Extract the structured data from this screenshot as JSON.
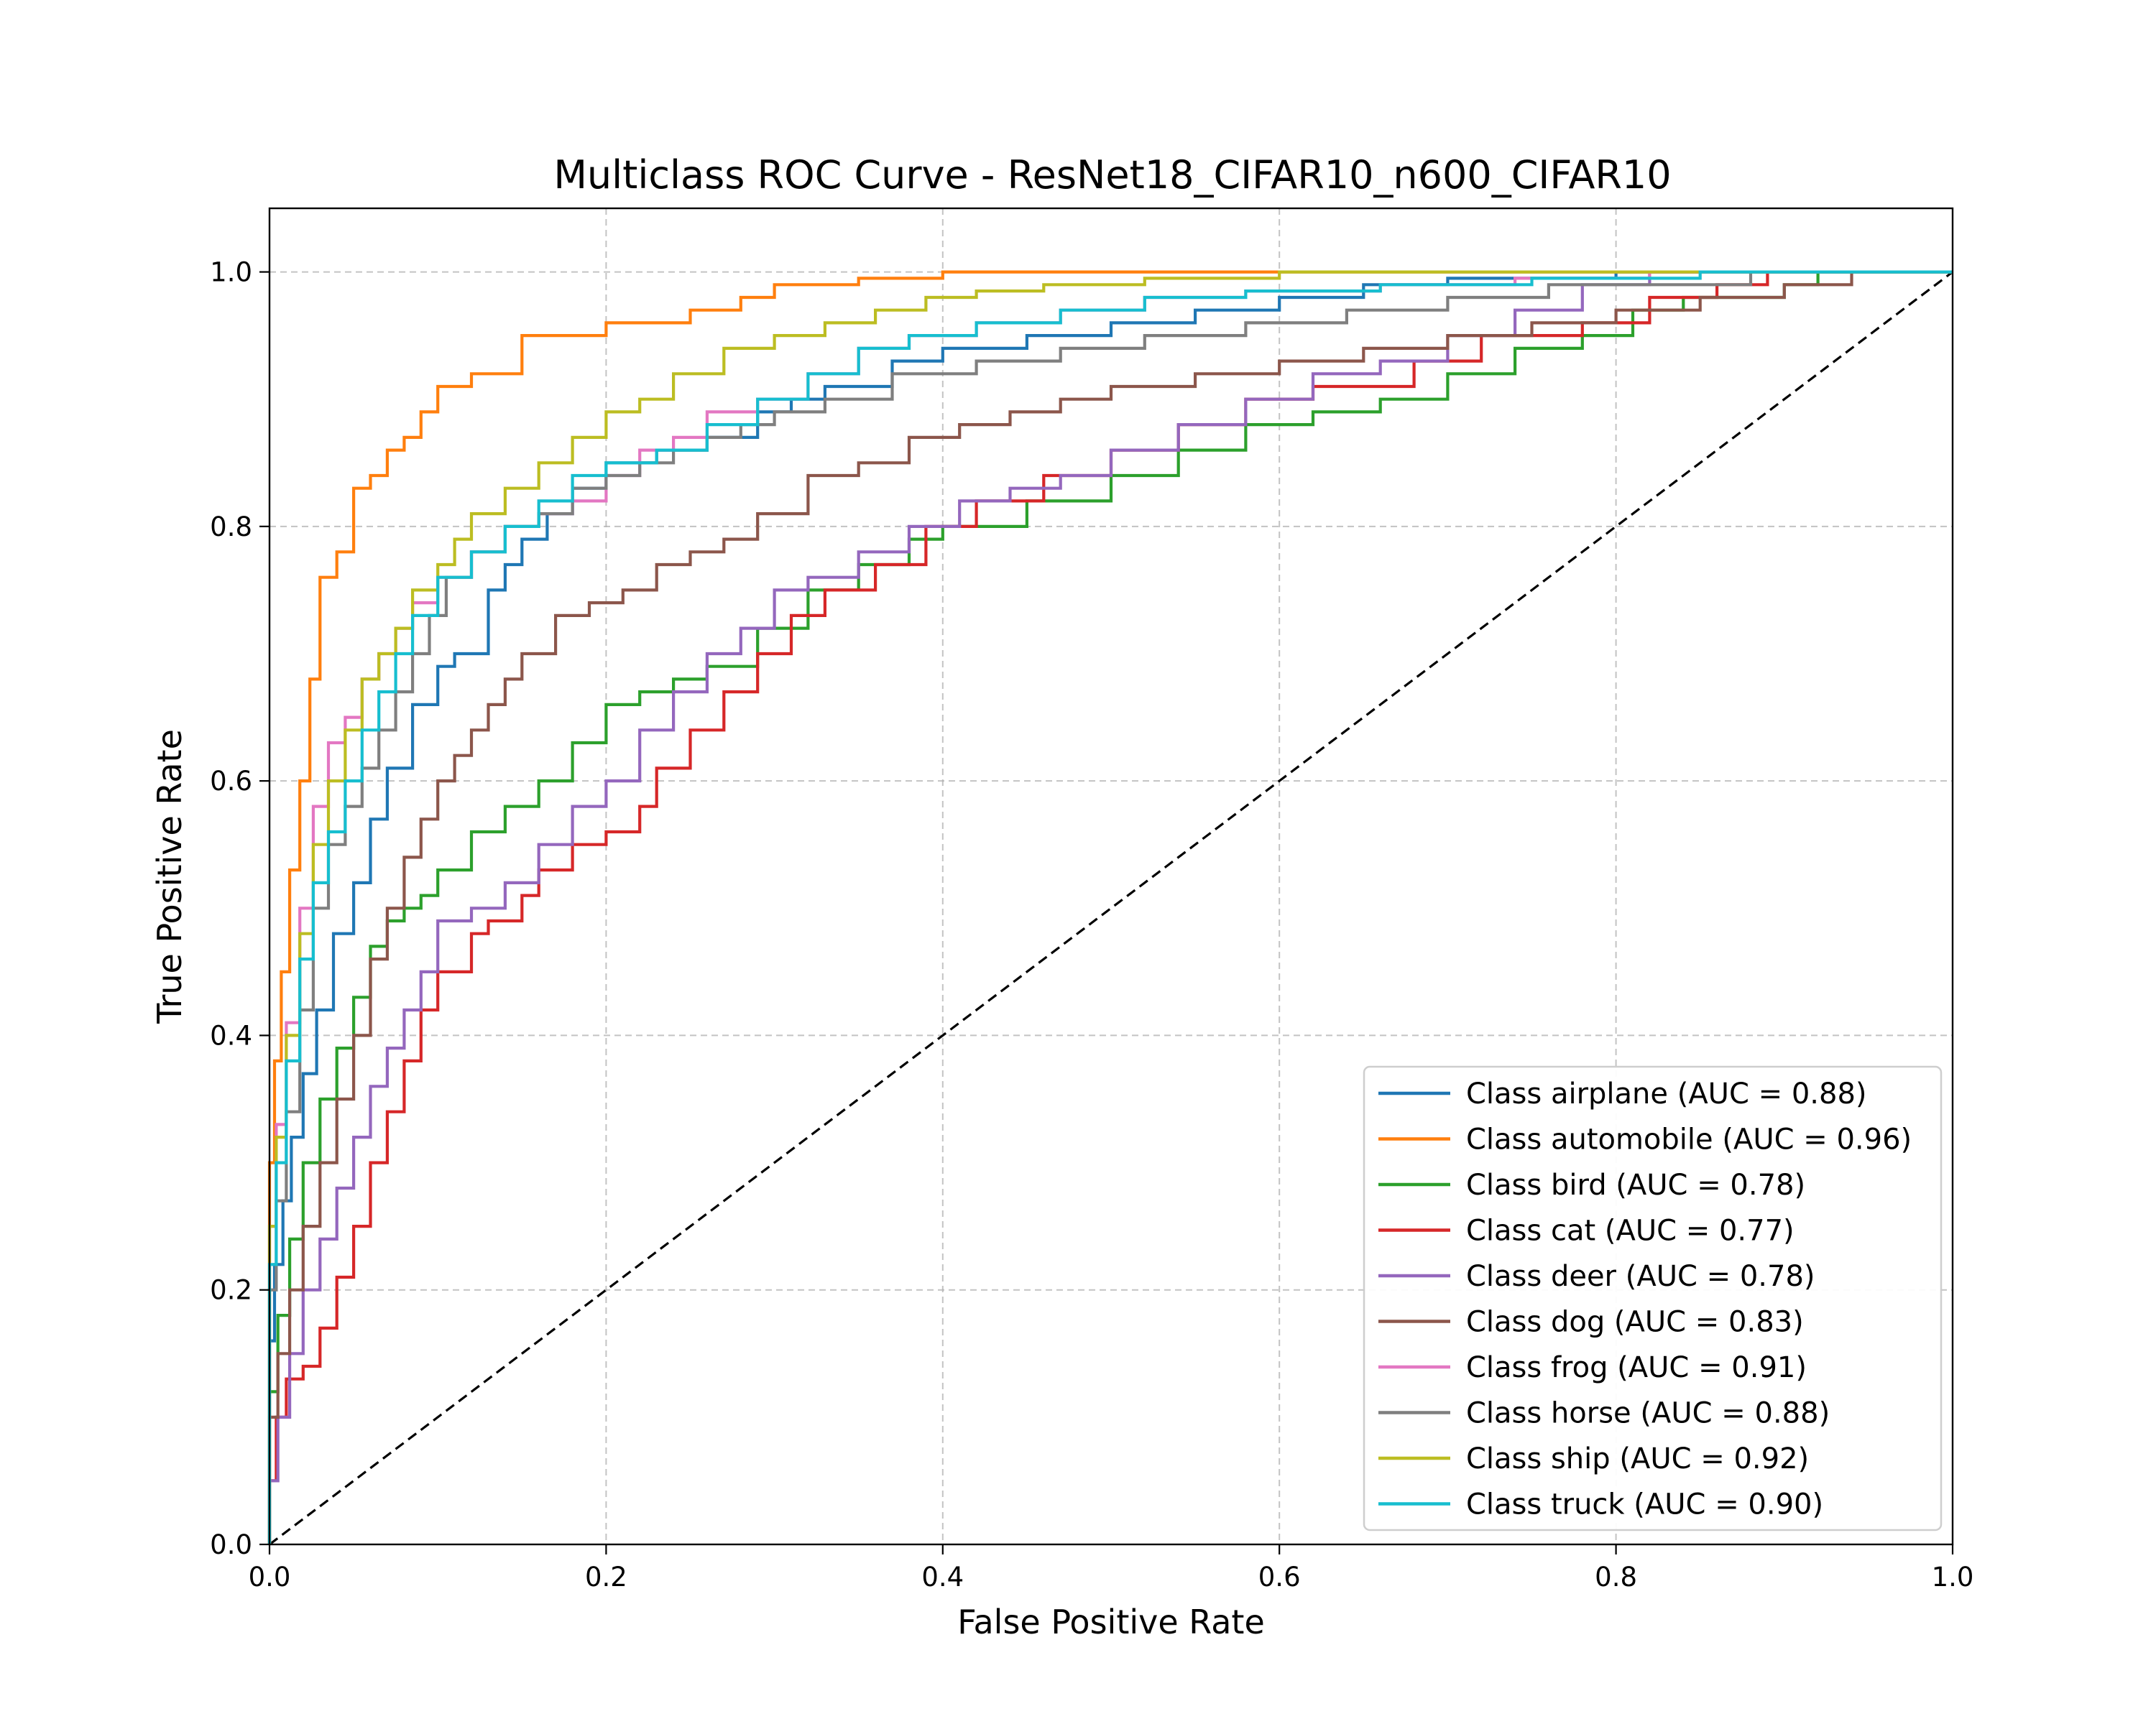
{
  "chart_data": {
    "type": "line",
    "title": "Multiclass ROC Curve - ResNet18_CIFAR10_n600_CIFAR10",
    "xlabel": "False Positive Rate",
    "ylabel": "True Positive Rate",
    "xlim": [
      0.0,
      1.0
    ],
    "ylim": [
      0.0,
      1.05
    ],
    "x_ticks": [
      "0.0",
      "0.2",
      "0.4",
      "0.6",
      "0.8",
      "1.0"
    ],
    "y_ticks": [
      "0.0",
      "0.2",
      "0.4",
      "0.6",
      "0.8",
      "1.0"
    ],
    "grid": true,
    "legend_position": "lower-right",
    "series": [
      {
        "name": "Class airplane (AUC = 0.88)",
        "color": "#1f77b4",
        "x": [
          0.0,
          0.003,
          0.008,
          0.013,
          0.02,
          0.028,
          0.038,
          0.05,
          0.06,
          0.07,
          0.085,
          0.1,
          0.11,
          0.13,
          0.14,
          0.15,
          0.165,
          0.18,
          0.2,
          0.23,
          0.26,
          0.29,
          0.31,
          0.33,
          0.37,
          0.4,
          0.45,
          0.5,
          0.55,
          0.6,
          0.65,
          0.7,
          0.8,
          0.9,
          1.0
        ],
        "y": [
          0.0,
          0.16,
          0.22,
          0.27,
          0.32,
          0.37,
          0.42,
          0.48,
          0.52,
          0.57,
          0.61,
          0.66,
          0.69,
          0.7,
          0.75,
          0.77,
          0.79,
          0.81,
          0.83,
          0.85,
          0.86,
          0.87,
          0.89,
          0.9,
          0.91,
          0.93,
          0.94,
          0.95,
          0.96,
          0.97,
          0.98,
          0.99,
          0.995,
          1.0,
          1.0
        ]
      },
      {
        "name": "Class automobile (AUC = 0.96)",
        "color": "#ff7f0e",
        "x": [
          0.0,
          0.003,
          0.007,
          0.012,
          0.018,
          0.024,
          0.03,
          0.04,
          0.05,
          0.06,
          0.07,
          0.08,
          0.09,
          0.1,
          0.12,
          0.15,
          0.18,
          0.2,
          0.25,
          0.28,
          0.3,
          0.35,
          0.4,
          0.43,
          0.6,
          0.7,
          1.0
        ],
        "y": [
          0.0,
          0.3,
          0.38,
          0.45,
          0.53,
          0.6,
          0.68,
          0.76,
          0.78,
          0.83,
          0.84,
          0.86,
          0.87,
          0.89,
          0.91,
          0.92,
          0.95,
          0.95,
          0.96,
          0.97,
          0.98,
          0.99,
          0.995,
          1.0,
          1.0,
          1.0,
          1.0
        ]
      },
      {
        "name": "Class bird (AUC = 0.78)",
        "color": "#2ca02c",
        "x": [
          0.0,
          0.005,
          0.012,
          0.02,
          0.03,
          0.04,
          0.05,
          0.06,
          0.07,
          0.08,
          0.09,
          0.1,
          0.12,
          0.14,
          0.16,
          0.18,
          0.2,
          0.22,
          0.24,
          0.26,
          0.29,
          0.32,
          0.35,
          0.38,
          0.4,
          0.45,
          0.5,
          0.54,
          0.58,
          0.62,
          0.66,
          0.7,
          0.74,
          0.78,
          0.81,
          0.84,
          0.9,
          0.92,
          1.0
        ],
        "y": [
          0.0,
          0.12,
          0.18,
          0.24,
          0.3,
          0.35,
          0.39,
          0.43,
          0.47,
          0.49,
          0.5,
          0.51,
          0.53,
          0.56,
          0.58,
          0.6,
          0.63,
          0.66,
          0.67,
          0.68,
          0.69,
          0.72,
          0.75,
          0.77,
          0.79,
          0.8,
          0.82,
          0.84,
          0.86,
          0.88,
          0.89,
          0.9,
          0.92,
          0.94,
          0.95,
          0.97,
          0.98,
          0.99,
          1.0
        ]
      },
      {
        "name": "Class cat (AUC = 0.77)",
        "color": "#d62728",
        "x": [
          0.0,
          0.004,
          0.01,
          0.02,
          0.03,
          0.04,
          0.05,
          0.06,
          0.07,
          0.08,
          0.09,
          0.1,
          0.12,
          0.13,
          0.15,
          0.16,
          0.18,
          0.2,
          0.22,
          0.23,
          0.25,
          0.27,
          0.29,
          0.31,
          0.33,
          0.36,
          0.39,
          0.42,
          0.46,
          0.5,
          0.54,
          0.58,
          0.62,
          0.68,
          0.72,
          0.78,
          0.82,
          0.86,
          0.89,
          1.0
        ],
        "y": [
          0.0,
          0.05,
          0.1,
          0.13,
          0.14,
          0.17,
          0.21,
          0.25,
          0.3,
          0.34,
          0.38,
          0.42,
          0.45,
          0.48,
          0.49,
          0.51,
          0.53,
          0.55,
          0.56,
          0.58,
          0.61,
          0.64,
          0.67,
          0.7,
          0.73,
          0.75,
          0.77,
          0.8,
          0.82,
          0.84,
          0.86,
          0.88,
          0.9,
          0.91,
          0.93,
          0.95,
          0.96,
          0.98,
          0.99,
          1.0
        ]
      },
      {
        "name": "Class deer (AUC = 0.78)",
        "color": "#9467bd",
        "x": [
          0.0,
          0.005,
          0.012,
          0.02,
          0.03,
          0.04,
          0.05,
          0.06,
          0.07,
          0.08,
          0.09,
          0.1,
          0.12,
          0.14,
          0.16,
          0.18,
          0.2,
          0.22,
          0.24,
          0.26,
          0.28,
          0.3,
          0.32,
          0.35,
          0.38,
          0.41,
          0.44,
          0.47,
          0.5,
          0.54,
          0.58,
          0.62,
          0.66,
          0.7,
          0.74,
          0.78,
          0.82,
          0.87,
          1.0
        ],
        "y": [
          0.0,
          0.05,
          0.1,
          0.15,
          0.2,
          0.24,
          0.28,
          0.32,
          0.36,
          0.39,
          0.42,
          0.45,
          0.49,
          0.5,
          0.52,
          0.55,
          0.58,
          0.6,
          0.64,
          0.67,
          0.7,
          0.72,
          0.75,
          0.76,
          0.78,
          0.8,
          0.82,
          0.83,
          0.84,
          0.86,
          0.88,
          0.9,
          0.92,
          0.93,
          0.95,
          0.97,
          0.99,
          1.0,
          1.0
        ]
      },
      {
        "name": "Class dog (AUC = 0.83)",
        "color": "#8c564b",
        "x": [
          0.0,
          0.005,
          0.012,
          0.02,
          0.03,
          0.04,
          0.05,
          0.06,
          0.07,
          0.08,
          0.09,
          0.1,
          0.11,
          0.12,
          0.13,
          0.14,
          0.15,
          0.17,
          0.19,
          0.21,
          0.23,
          0.25,
          0.27,
          0.29,
          0.32,
          0.35,
          0.38,
          0.41,
          0.44,
          0.47,
          0.5,
          0.55,
          0.6,
          0.65,
          0.7,
          0.75,
          0.8,
          0.85,
          0.9,
          0.94,
          1.0
        ],
        "y": [
          0.0,
          0.1,
          0.15,
          0.2,
          0.25,
          0.3,
          0.35,
          0.4,
          0.46,
          0.5,
          0.54,
          0.57,
          0.6,
          0.62,
          0.64,
          0.66,
          0.68,
          0.7,
          0.73,
          0.74,
          0.75,
          0.77,
          0.78,
          0.79,
          0.81,
          0.84,
          0.85,
          0.87,
          0.88,
          0.89,
          0.9,
          0.91,
          0.92,
          0.93,
          0.94,
          0.95,
          0.96,
          0.97,
          0.98,
          0.99,
          1.0
        ]
      },
      {
        "name": "Class frog (AUC = 0.91)",
        "color": "#e377c2",
        "x": [
          0.0,
          0.004,
          0.01,
          0.018,
          0.026,
          0.035,
          0.045,
          0.055,
          0.065,
          0.075,
          0.085,
          0.1,
          0.12,
          0.14,
          0.16,
          0.18,
          0.2,
          0.22,
          0.24,
          0.26,
          0.29,
          0.32,
          0.35,
          0.38,
          0.42,
          0.47,
          0.52,
          0.58,
          0.66,
          0.74,
          0.82,
          0.9,
          1.0
        ],
        "y": [
          0.0,
          0.25,
          0.33,
          0.41,
          0.5,
          0.58,
          0.63,
          0.65,
          0.68,
          0.7,
          0.72,
          0.74,
          0.76,
          0.78,
          0.8,
          0.81,
          0.82,
          0.84,
          0.86,
          0.87,
          0.89,
          0.9,
          0.92,
          0.94,
          0.95,
          0.96,
          0.97,
          0.98,
          0.985,
          0.99,
          0.995,
          1.0,
          1.0
        ]
      },
      {
        "name": "Class horse (AUC = 0.88)",
        "color": "#7f7f7f",
        "x": [
          0.0,
          0.004,
          0.01,
          0.018,
          0.026,
          0.035,
          0.045,
          0.055,
          0.065,
          0.075,
          0.085,
          0.095,
          0.105,
          0.12,
          0.14,
          0.16,
          0.18,
          0.2,
          0.22,
          0.24,
          0.26,
          0.28,
          0.3,
          0.33,
          0.37,
          0.42,
          0.47,
          0.52,
          0.58,
          0.64,
          0.7,
          0.76,
          0.82,
          0.88,
          0.94,
          1.0
        ],
        "y": [
          0.0,
          0.2,
          0.27,
          0.34,
          0.42,
          0.5,
          0.55,
          0.58,
          0.61,
          0.64,
          0.67,
          0.7,
          0.73,
          0.76,
          0.78,
          0.8,
          0.81,
          0.83,
          0.84,
          0.85,
          0.86,
          0.87,
          0.88,
          0.89,
          0.9,
          0.92,
          0.93,
          0.94,
          0.95,
          0.96,
          0.97,
          0.98,
          0.99,
          0.99,
          1.0,
          1.0
        ]
      },
      {
        "name": "Class ship (AUC = 0.92)",
        "color": "#bcbd22",
        "x": [
          0.0,
          0.004,
          0.01,
          0.018,
          0.026,
          0.035,
          0.045,
          0.055,
          0.065,
          0.075,
          0.085,
          0.1,
          0.11,
          0.12,
          0.14,
          0.16,
          0.18,
          0.2,
          0.22,
          0.24,
          0.27,
          0.3,
          0.33,
          0.36,
          0.39,
          0.42,
          0.46,
          0.52,
          0.6,
          0.7,
          0.8,
          0.88,
          1.0
        ],
        "y": [
          0.0,
          0.25,
          0.32,
          0.4,
          0.48,
          0.55,
          0.6,
          0.64,
          0.68,
          0.7,
          0.72,
          0.75,
          0.77,
          0.79,
          0.81,
          0.83,
          0.85,
          0.87,
          0.89,
          0.9,
          0.92,
          0.94,
          0.95,
          0.96,
          0.97,
          0.98,
          0.985,
          0.99,
          0.995,
          1.0,
          1.0,
          1.0,
          1.0
        ]
      },
      {
        "name": "Class truck (AUC = 0.90)",
        "color": "#17becf",
        "x": [
          0.0,
          0.004,
          0.01,
          0.018,
          0.026,
          0.035,
          0.045,
          0.055,
          0.065,
          0.075,
          0.085,
          0.1,
          0.12,
          0.14,
          0.16,
          0.18,
          0.2,
          0.23,
          0.26,
          0.29,
          0.32,
          0.35,
          0.38,
          0.42,
          0.47,
          0.52,
          0.58,
          0.66,
          0.75,
          0.85,
          0.92,
          1.0
        ],
        "y": [
          0.0,
          0.22,
          0.3,
          0.38,
          0.46,
          0.52,
          0.56,
          0.6,
          0.64,
          0.67,
          0.7,
          0.73,
          0.76,
          0.78,
          0.8,
          0.82,
          0.84,
          0.85,
          0.86,
          0.88,
          0.9,
          0.92,
          0.94,
          0.95,
          0.96,
          0.97,
          0.98,
          0.985,
          0.99,
          0.995,
          1.0,
          1.0
        ]
      }
    ],
    "reference_line": {
      "x": [
        0.0,
        1.0
      ],
      "y": [
        0.0,
        1.0
      ],
      "color": "#000000",
      "style": "dashed"
    }
  }
}
